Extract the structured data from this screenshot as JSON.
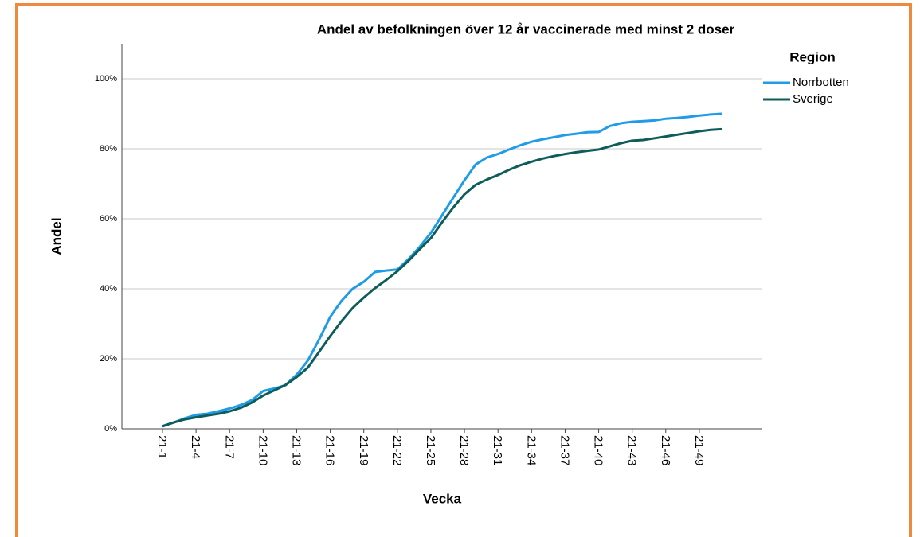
{
  "chart_data": {
    "type": "line",
    "title": "Andel av befolkningen över 12 år vaccinerade med minst 2 doser",
    "x_label": "Vecka",
    "y_label": "Andel",
    "legend_title": "Region",
    "legend_position": "right",
    "categories": [
      "21-1",
      null,
      null,
      "21-4",
      null,
      null,
      "21-7",
      null,
      null,
      "21-10",
      null,
      null,
      "21-13",
      null,
      null,
      "21-16",
      null,
      null,
      "21-19",
      null,
      null,
      "21-22",
      null,
      null,
      "21-25",
      null,
      null,
      "21-28",
      null,
      null,
      "21-31",
      null,
      null,
      "21-34",
      null,
      null,
      "21-37",
      null,
      null,
      "21-40",
      null,
      null,
      "21-43",
      null,
      null,
      "21-46",
      null,
      null,
      "21-49",
      null,
      null
    ],
    "series": [
      {
        "name": "Norrbotten",
        "color": "#1f9be8",
        "values": [
          0.8,
          1.8,
          3,
          4,
          4.3,
          5,
          5.8,
          6.8,
          8.2,
          10.8,
          11.5,
          12.5,
          15.5,
          19.5,
          25.5,
          32,
          36.5,
          40,
          42,
          44.8,
          45.2,
          45.5,
          48.5,
          52,
          56,
          61,
          66,
          71,
          75.5,
          77.5,
          78.5,
          79.8,
          81,
          82,
          82.7,
          83.3,
          83.9,
          84.3,
          84.7,
          84.8,
          86.5,
          87.3,
          87.7,
          87.9,
          88.1,
          88.6,
          88.8,
          89.1,
          89.5,
          89.8,
          90
        ]
      },
      {
        "name": "Sverige",
        "color": "#0e5d5a",
        "values": [
          0.7,
          1.8,
          2.7,
          3.3,
          3.8,
          4.3,
          5,
          6,
          7.5,
          9.5,
          11,
          12.5,
          14.8,
          17.5,
          22,
          26.5,
          30.7,
          34.5,
          37.5,
          40.2,
          42.5,
          45,
          48,
          51.3,
          54.5,
          59,
          63.2,
          67,
          69.7,
          71.2,
          72.5,
          74,
          75.3,
          76.3,
          77.2,
          77.9,
          78.5,
          79,
          79.4,
          79.8,
          80.7,
          81.6,
          82.3,
          82.5,
          83,
          83.5,
          84,
          84.5,
          85,
          85.4,
          85.6
        ]
      }
    ],
    "ylim": [
      0,
      110
    ],
    "yticks": [
      {
        "value": 0,
        "label": "0%"
      },
      {
        "value": 20,
        "label": "20%"
      },
      {
        "value": 40,
        "label": "40%"
      },
      {
        "value": 60,
        "label": "60%"
      },
      {
        "value": 80,
        "label": "80%"
      },
      {
        "value": 100,
        "label": "100%"
      }
    ],
    "grid": true
  }
}
